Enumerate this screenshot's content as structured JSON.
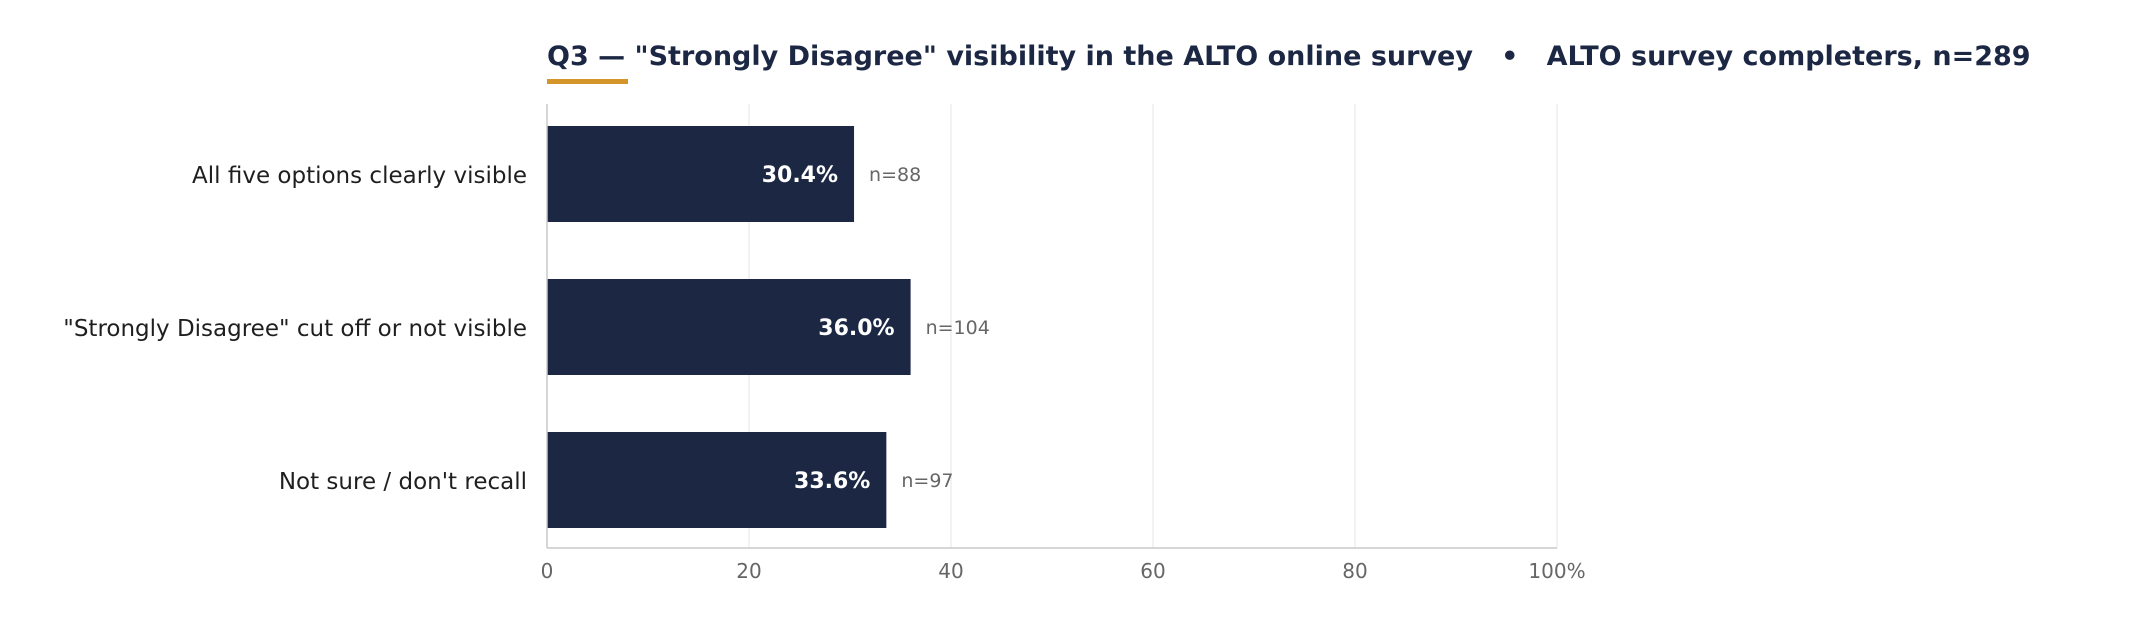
{
  "colors": {
    "bar": "#1b2743",
    "accent": "#d4952b",
    "grid": "#e6e6e6",
    "axis": "#c8c8c8"
  },
  "chart_data": {
    "type": "bar",
    "orientation": "horizontal",
    "title": "Q3 — \"Strongly Disagree\" visibility in the ALTO online survey   •   ALTO survey completers, n=289",
    "categories": [
      "All five options clearly visible",
      "\"Strongly Disagree\" cut off or not visible",
      "Not sure / don't recall"
    ],
    "values": [
      30.4,
      36.0,
      33.6
    ],
    "value_labels": [
      "30.4%",
      "36.0%",
      "33.6%"
    ],
    "n_labels": [
      "n=88",
      "n=104",
      "n=97"
    ],
    "xlim": [
      0,
      100
    ],
    "xticks": [
      0,
      20,
      40,
      60,
      80,
      100
    ],
    "xtick_labels": [
      "0",
      "20",
      "40",
      "60",
      "80",
      "100%"
    ],
    "grid": true
  }
}
